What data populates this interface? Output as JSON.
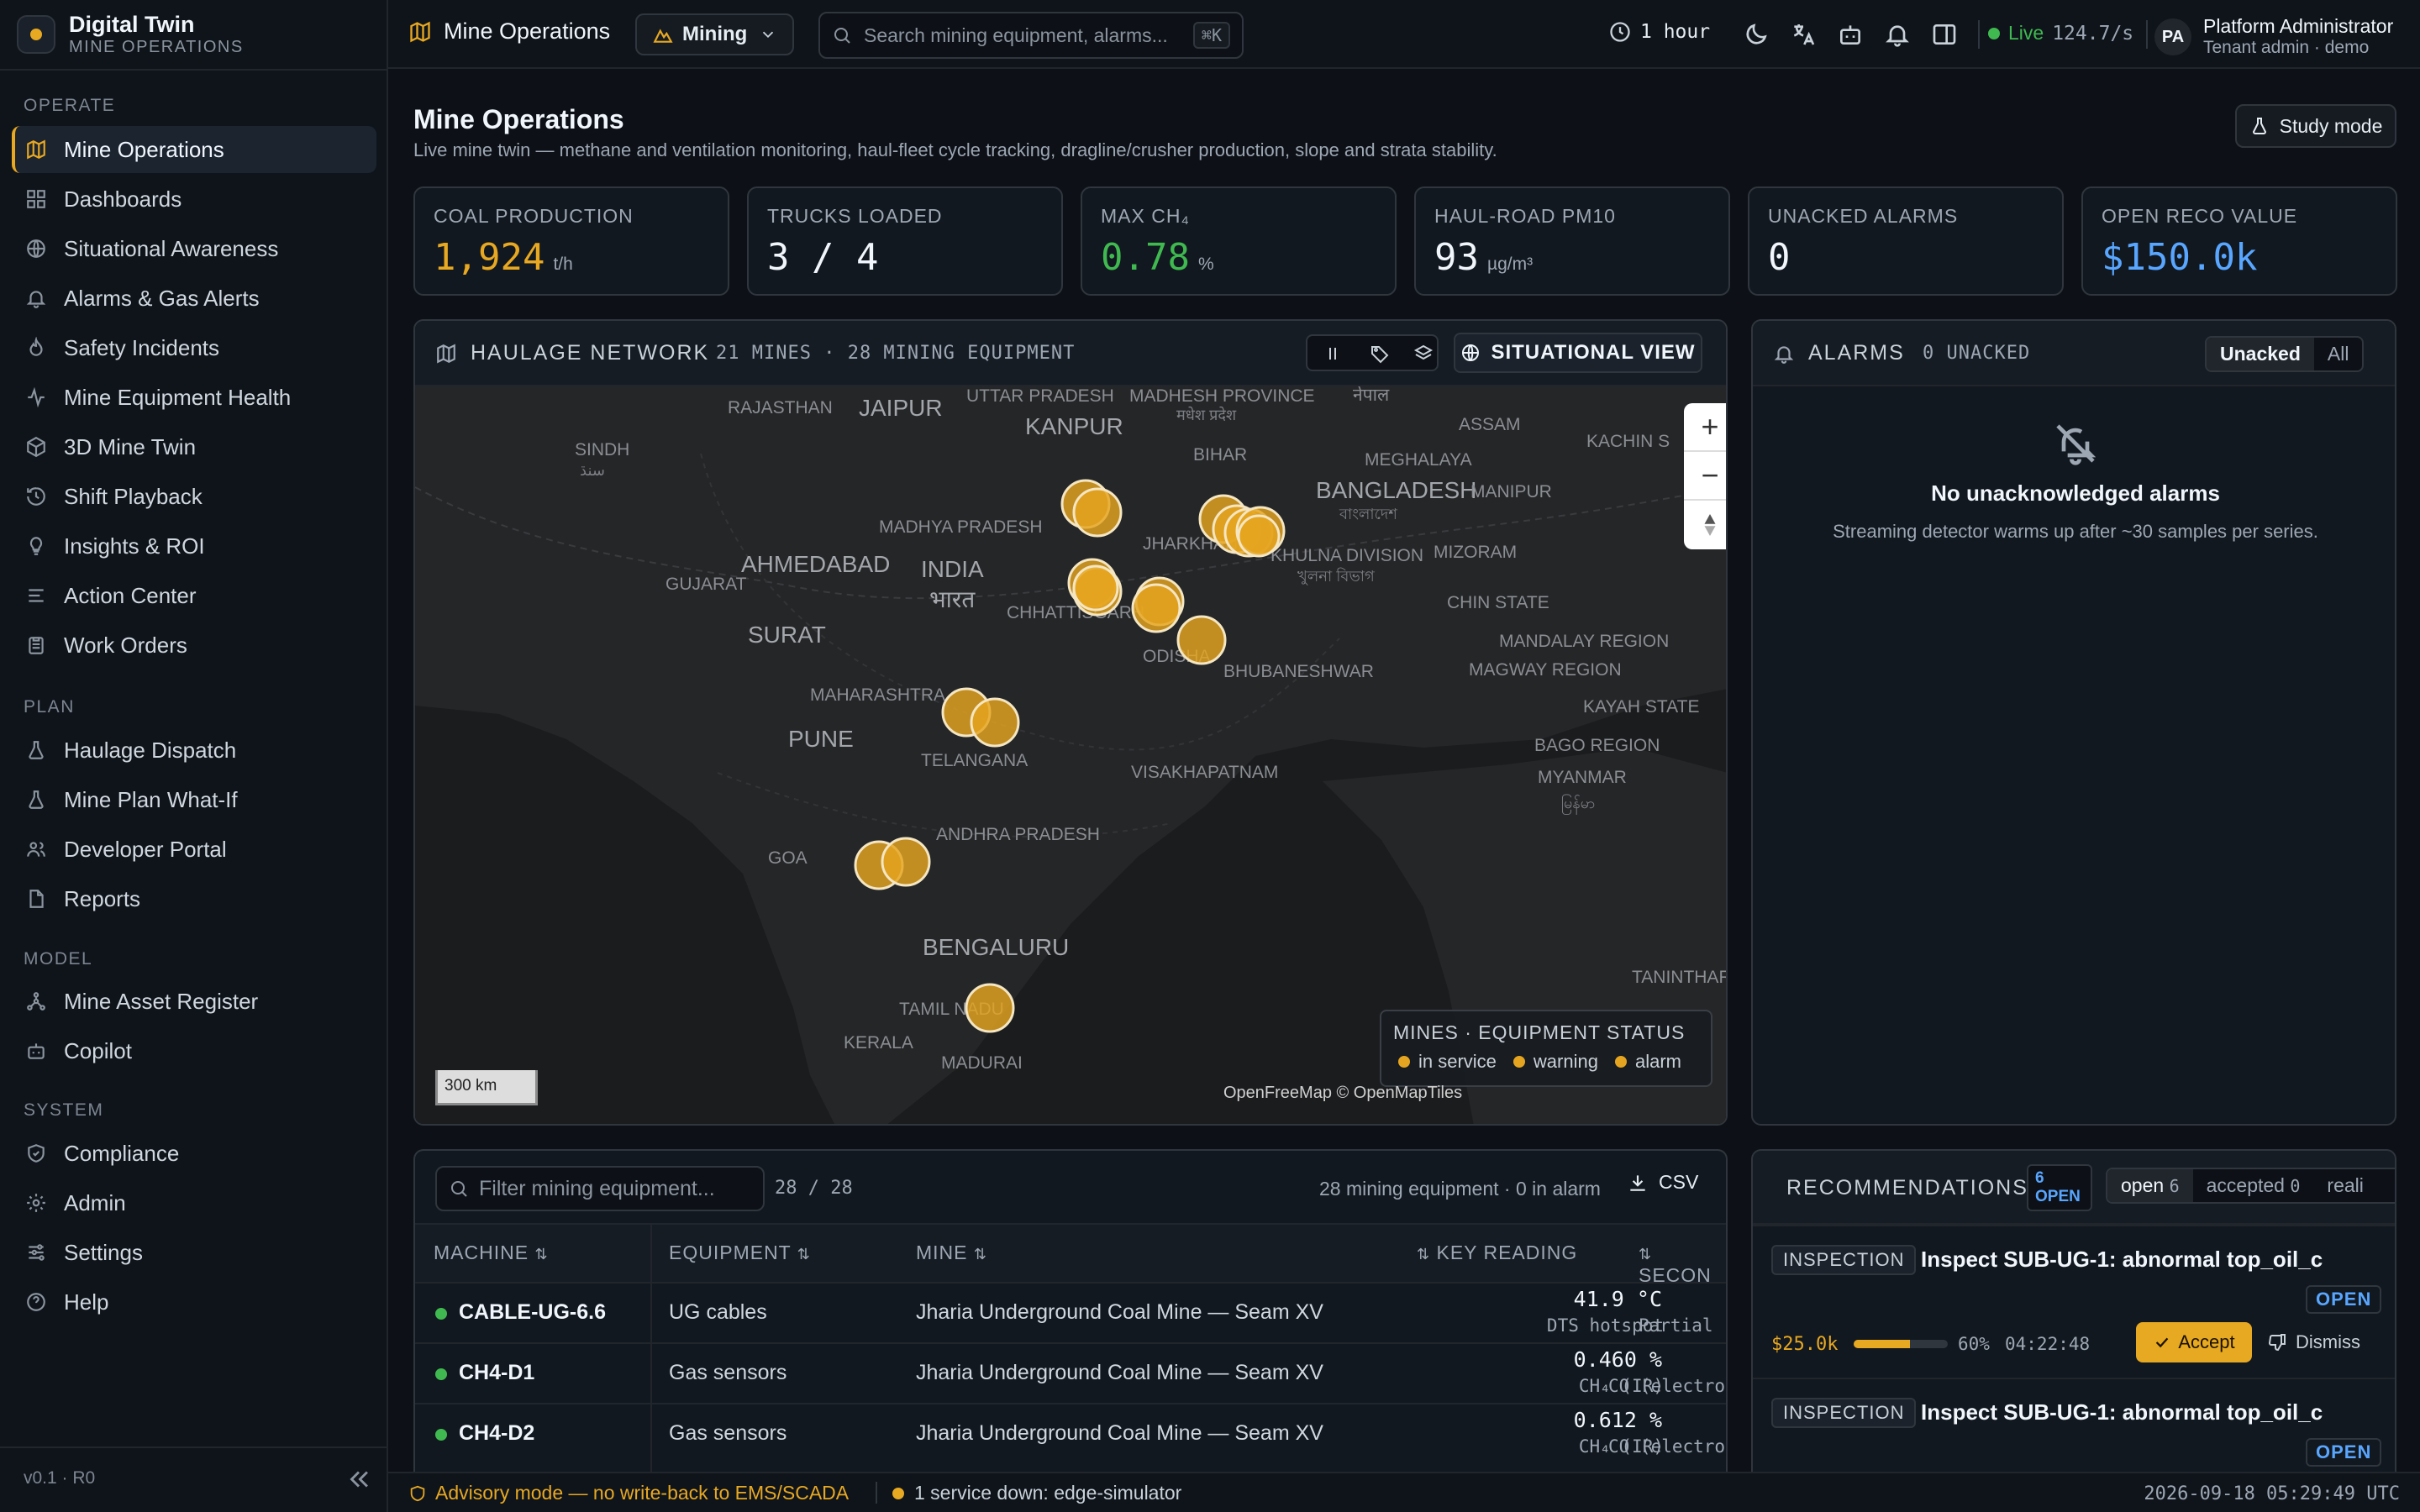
{
  "brand": {
    "title": "Digital Twin",
    "subtitle": "MINE OPERATIONS"
  },
  "sidebar": {
    "sections": {
      "operate": "OPERATE",
      "plan": "PLAN",
      "model": "MODEL",
      "system": "SYSTEM"
    },
    "operate_items": [
      {
        "label": "Mine Operations",
        "icon": "map-icon",
        "active": true
      },
      {
        "label": "Dashboards",
        "icon": "grid-icon"
      },
      {
        "label": "Situational Awareness",
        "icon": "globe-icon"
      },
      {
        "label": "Alarms & Gas Alerts",
        "icon": "bell-icon"
      },
      {
        "label": "Safety Incidents",
        "icon": "flame-icon"
      },
      {
        "label": "Mine Equipment Health",
        "icon": "activity-icon"
      },
      {
        "label": "3D Mine Twin",
        "icon": "cube-icon"
      },
      {
        "label": "Shift Playback",
        "icon": "history-icon"
      },
      {
        "label": "Insights & ROI",
        "icon": "lightbulb-icon"
      },
      {
        "label": "Action Center",
        "icon": "list-icon"
      },
      {
        "label": "Work Orders",
        "icon": "clipboard-icon"
      }
    ],
    "plan_items": [
      {
        "label": "Haulage Dispatch",
        "icon": "flask-icon"
      },
      {
        "label": "Mine Plan What-If",
        "icon": "flask-icon"
      },
      {
        "label": "Developer Portal",
        "icon": "users-icon"
      },
      {
        "label": "Reports",
        "icon": "file-icon"
      }
    ],
    "model_items": [
      {
        "label": "Mine Asset Register",
        "icon": "network-icon"
      },
      {
        "label": "Copilot",
        "icon": "bot-icon"
      }
    ],
    "system_items": [
      {
        "label": "Compliance",
        "icon": "shield-icon"
      },
      {
        "label": "Admin",
        "icon": "gear-icon"
      },
      {
        "label": "Settings",
        "icon": "sliders-icon"
      },
      {
        "label": "Help",
        "icon": "help-icon"
      }
    ],
    "version": "v0.1 · R0"
  },
  "topbar": {
    "breadcrumb": "Mine Operations",
    "domain": "Mining",
    "search_placeholder": "Search mining equipment, alarms...",
    "search_shortcut": "⌘K",
    "time_range": "1 hour",
    "live_label": "Live",
    "live_rate": "124.7/s",
    "user_initials": "PA",
    "user_name": "Platform Administrator",
    "user_role": "Tenant admin · demo"
  },
  "page": {
    "title": "Mine Operations",
    "subtitle": "Live mine twin — methane and ventilation monitoring, haul-fleet cycle tracking, dragline/crusher production, slope and strata stability.",
    "study_mode": "Study mode"
  },
  "kpis": [
    {
      "label": "COAL PRODUCTION",
      "value": "1,924",
      "unit": "t/h",
      "color": "#e7a822"
    },
    {
      "label": "TRUCKS LOADED",
      "value": "3 / 4",
      "unit": "",
      "color": "#f0f6fc"
    },
    {
      "label": "MAX CH₄",
      "value": "0.78",
      "unit": "%",
      "color": "#3fb950"
    },
    {
      "label": "HAUL-ROAD PM10",
      "value": "93",
      "unit": "µg/m³",
      "color": "#f0f6fc"
    },
    {
      "label": "UNACKED ALARMS",
      "value": "0",
      "unit": "",
      "color": "#f0f6fc"
    },
    {
      "label": "OPEN RECO VALUE",
      "value": "$150.0k",
      "unit": "",
      "color": "#58a6ff"
    }
  ],
  "haulage": {
    "title": "HAULAGE NETWORK",
    "meta": "21 MINES · 28 MINING EQUIPMENT",
    "situational_view": "SITUATIONAL VIEW",
    "map_labels": [
      "RAJASTHAN",
      "JAIPUR",
      "UTTAR PRADESH",
      "KANPUR",
      "MADHESH PROVINCE",
      "मधेश प्रदेश",
      "नेपाल",
      "ASSAM",
      "KACHIN S",
      "SINDH",
      "سنڌ",
      "BIHAR",
      "MEGHALAYA",
      "MADHYA PRADESH",
      "JHARKHAND",
      "BANGLADESH",
      "বাংলাদেশ",
      "MANIPUR",
      "AHMEDABAD",
      "INDIA",
      "भारत",
      "GUJARAT",
      "KHULNA DIVISION",
      "খুলনা বিভাগ",
      "MIZORAM",
      "CHHATTISGARH",
      "CHIN STATE",
      "SURAT",
      "ODISHA",
      "BHUBANESHWAR",
      "MANDALAY REGION",
      "MAGWAY REGION",
      "MAHARASHTRA",
      "KAYAH STATE",
      "PUNE",
      "TELANGANA",
      "BAGO REGION",
      "VISAKHAPATNAM",
      "MYANMAR",
      "မြန်မာ",
      "GOA",
      "ANDHRA PRADESH",
      "BENGALURU",
      "TANINTHAR",
      "TAMIL NADU",
      "KERALA",
      "MADURAI"
    ],
    "scale": "300 km",
    "attribution": "OpenFreeMap © OpenMapTiles",
    "legend_title": "MINES · EQUIPMENT STATUS",
    "legend": [
      {
        "label": "in service",
        "color": "#e5a520"
      },
      {
        "label": "warning",
        "color": "#e5a520"
      },
      {
        "label": "alarm",
        "color": "#e5a520"
      }
    ]
  },
  "alarms": {
    "title": "ALARMS",
    "meta": "0 UNACKED",
    "toggle_unacked": "Unacked",
    "toggle_all": "All",
    "empty_title": "No unacknowledged alarms",
    "empty_sub": "Streaming detector warms up after ~30 samples per series."
  },
  "equipment": {
    "filter_placeholder": "Filter mining equipment...",
    "count": "28 / 28",
    "summary": "28 mining equipment · 0 in alarm",
    "csv": "CSV",
    "columns": {
      "machine": "MACHINE",
      "equipment": "EQUIPMENT",
      "mine": "MINE",
      "key": "KEY READING",
      "second": "SECON"
    },
    "rows": [
      {
        "machine": "CABLE-UG-6.6",
        "equipment": "UG cables",
        "mine": "Jharia Underground Coal Mine — Seam XV",
        "reading": "41.9 °C",
        "reading_label": "DTS hotspot",
        "second": "Partial"
      },
      {
        "machine": "CH4-D1",
        "equipment": "Gas sensors",
        "mine": "Jharia Underground Coal Mine — Seam XV",
        "reading": "0.460 %",
        "reading_label": "CH₄ (IR)",
        "second": "CO (electro"
      },
      {
        "machine": "CH4-D2",
        "equipment": "Gas sensors",
        "mine": "Jharia Underground Coal Mine — Seam XV",
        "reading": "0.612 %",
        "reading_label": "CH₄ (IR)",
        "second": "CO (electro"
      }
    ]
  },
  "recommendations": {
    "title": "RECOMMENDATIONS",
    "open_count": "6",
    "open_label": "OPEN",
    "tab_open": "open",
    "tab_open_count": "6",
    "tab_accepted": "accepted",
    "tab_accepted_count": "0",
    "tab_realized": "reali",
    "items": [
      {
        "tag": "INSPECTION",
        "title": "Inspect SUB-UG-1: abnormal top_oil_c",
        "status": "OPEN",
        "value": "$25.0k",
        "confidence": 0.6,
        "confidence_label": "60%",
        "eta": "04:22:48",
        "accept": "Accept",
        "dismiss": "Dismiss"
      },
      {
        "tag": "INSPECTION",
        "title": "Inspect SUB-UG-1: abnormal top_oil_c",
        "status": "OPEN"
      }
    ]
  },
  "statusbar": {
    "advisory": "Advisory mode — no write-back to EMS/SCADA",
    "service": "1 service down: edge-simulator",
    "timestamp": "2026-09-18 05:29:49 UTC"
  }
}
